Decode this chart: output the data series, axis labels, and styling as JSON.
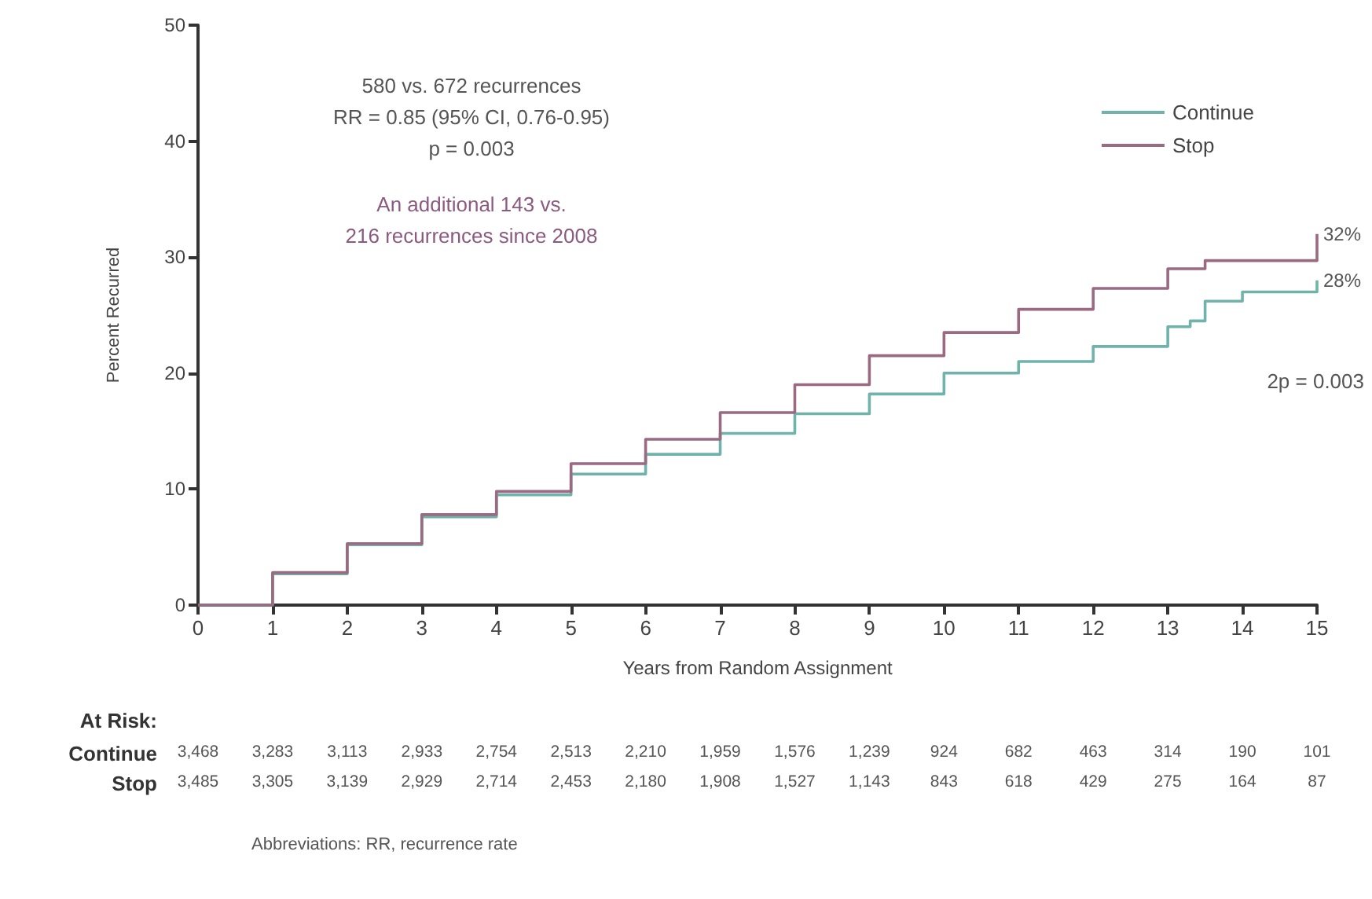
{
  "chart_data": {
    "type": "step",
    "xlabel": "Years from Random Assignment",
    "ylabel": "Percent Recurred",
    "xlim": [
      0,
      15
    ],
    "xticks": [
      0,
      1,
      2,
      3,
      4,
      5,
      6,
      7,
      8,
      9,
      10,
      11,
      12,
      13,
      14,
      15
    ],
    "ylim": [
      0,
      50
    ],
    "yticks": [
      0,
      10,
      20,
      30,
      40,
      50
    ],
    "grid": false,
    "legend": "top right",
    "marker": "none",
    "line_style": "solid",
    "series": [
      {
        "name": "Continue",
        "color": "#6fb3aa",
        "x": [
          0,
          1,
          2,
          3,
          4,
          5,
          6,
          7,
          8,
          9,
          10,
          11,
          12,
          13,
          13.3,
          13.5,
          14,
          15
        ],
        "values": [
          0,
          2.7,
          5.2,
          7.6,
          9.5,
          11.3,
          13,
          14.8,
          16.5,
          18.2,
          20,
          21,
          22.3,
          24,
          24.5,
          26.2,
          27,
          28
        ]
      },
      {
        "name": "Stop",
        "color": "#9a6a82",
        "x": [
          0,
          1,
          2,
          3,
          4,
          5,
          6,
          7,
          8,
          9,
          10,
          11,
          12,
          13,
          13.5,
          14.9,
          15
        ],
        "values": [
          0,
          2.8,
          5.3,
          7.8,
          9.8,
          12.2,
          14.3,
          16.6,
          19,
          21.5,
          23.5,
          25.5,
          27.3,
          29,
          29.7,
          29.7,
          32
        ]
      }
    ],
    "annotations": [
      "580 vs. 672 recurrences",
      "RR = 0.85 (95% CI, 0.76-0.95)",
      "p = 0.003",
      "An additional 143 vs. 216 recurrences since 2008",
      "2p = 0.003",
      {
        "text": "32%",
        "x": 15,
        "y": 32
      },
      {
        "text": "28%",
        "x": 15,
        "y": 28
      },
      "At Risk:",
      "Continue 3,468 3,283 3,113 2,933 2,754 2,513 2,210 1,959 1,576 1,239 924 682 463 314 190 101",
      "Stop 3,485 3,305 3,139 2,929 2,714 2,453 2,180 1,908 1,527 1,143 843 618 429 275 164 87",
      "Abbreviations: RR, recurrence rate"
    ]
  }
}
